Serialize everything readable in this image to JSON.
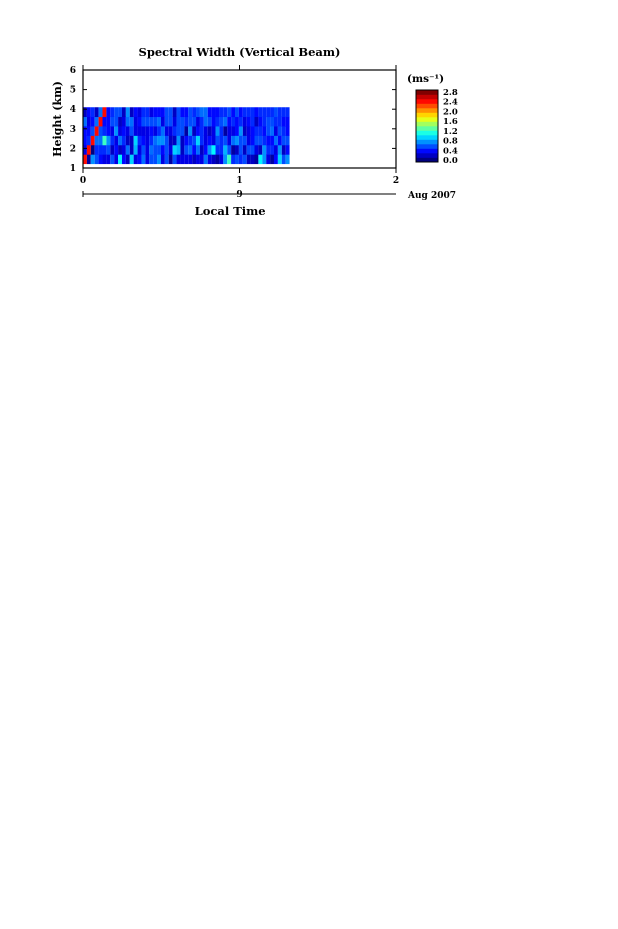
{
  "figure": {
    "x_label": "Local Time",
    "date_label": "Aug 2007"
  },
  "chart_data": [
    {
      "type": "heatmap",
      "title": "Spectral Width (Vertical Beam)",
      "ylabel": "Height (km)",
      "xlabel": "Local Time",
      "x_ticks": [
        "0",
        "1",
        "2"
      ],
      "date_ticks": [
        "9"
      ],
      "date_label": "Aug 2007",
      "y_ticks": [
        "1",
        "2",
        "3",
        "4",
        "5",
        "6"
      ],
      "xlim": [
        0,
        2
      ],
      "ylim": [
        1,
        6
      ],
      "colorbar": {
        "unit": "(ms⁻¹)",
        "ticks": [
          "0.0",
          "0.4",
          "0.8",
          "1.2",
          "1.6",
          "2.0",
          "2.4",
          "2.8"
        ],
        "range": [
          0,
          3.0
        ]
      },
      "grid": [
        [
          2.6,
          0.1,
          0.8,
          0.6,
          0.4,
          0.3,
          0.3,
          0.6,
          0.3,
          1.1,
          0.4,
          0.2,
          1.0,
          0.3,
          0.4,
          0.7,
          0.3,
          0.6,
          0.6,
          0.8,
          0.3,
          0.6,
          0.1,
          0.6,
          0.3,
          0.3,
          0.3,
          0.3,
          0.2,
          0.3,
          0.3,
          0.7,
          0.3,
          0.2,
          0.1,
          0.3,
          0.8,
          1.3,
          0.5,
          0.6,
          0.5,
          0.6,
          0.2,
          0.2,
          0.1,
          1.1,
          0.8,
          0.3,
          0.1,
          0.4,
          1.0,
          0.6,
          0.8
        ],
        [
          0.3,
          2.6,
          0.0,
          0.5,
          0.5,
          0.5,
          0.6,
          0.2,
          0.4,
          0.2,
          0.3,
          0.7,
          0.2,
          0.9,
          0.3,
          0.6,
          0.3,
          0.7,
          0.6,
          0.6,
          0.4,
          0.6,
          0.3,
          1.0,
          0.9,
          0.2,
          0.6,
          0.7,
          0.4,
          0.7,
          0.2,
          0.4,
          0.8,
          1.1,
          0.5,
          0.5,
          0.9,
          0.6,
          0.1,
          0.2,
          0.6,
          0.2,
          0.6,
          0.6,
          0.3,
          0.2,
          0.8,
          0.5,
          0.5,
          0.3,
          0.8,
          0.2,
          0.4
        ],
        [
          0.4,
          0.5,
          2.6,
          0.7,
          0.7,
          1.3,
          0.8,
          0.5,
          0.3,
          0.7,
          0.5,
          0.2,
          0.2,
          1.0,
          0.5,
          0.4,
          0.3,
          0.5,
          0.7,
          0.8,
          0.8,
          0.6,
          0.2,
          0.2,
          0.8,
          0.2,
          0.4,
          0.5,
          0.6,
          1.0,
          0.5,
          0.3,
          0.4,
          0.3,
          0.6,
          0.5,
          0.6,
          0.3,
          0.7,
          0.8,
          0.6,
          0.6,
          0.3,
          0.4,
          0.6,
          0.6,
          0.5,
          0.4,
          0.4,
          0.7,
          0.4,
          0.6,
          0.6
        ],
        [
          0.4,
          0.4,
          0.6,
          2.6,
          0.6,
          0.5,
          0.4,
          0.3,
          0.8,
          0.3,
          0.4,
          0.3,
          0.6,
          0.3,
          0.3,
          0.3,
          0.3,
          0.4,
          0.3,
          0.5,
          0.7,
          0.3,
          0.3,
          0.5,
          0.6,
          0.6,
          0.1,
          0.8,
          0.2,
          0.4,
          0.5,
          0.3,
          0.2,
          0.3,
          0.8,
          0.5,
          0.1,
          0.3,
          0.3,
          0.4,
          0.8,
          0.2,
          0.3,
          0.4,
          0.5,
          0.5,
          0.4,
          0.6,
          0.7,
          0.3,
          0.6,
          0.5,
          0.4
        ],
        [
          0.7,
          0.3,
          0.4,
          0.7,
          2.6,
          0.4,
          0.4,
          0.6,
          0.6,
          0.2,
          0.3,
          0.7,
          0.7,
          0.3,
          0.4,
          0.6,
          0.6,
          0.6,
          0.6,
          0.7,
          0.3,
          0.6,
          0.6,
          0.3,
          0.6,
          0.6,
          0.5,
          0.6,
          0.6,
          0.3,
          0.5,
          0.7,
          0.6,
          0.4,
          0.5,
          0.6,
          0.7,
          0.4,
          0.5,
          0.4,
          0.5,
          0.3,
          0.4,
          0.5,
          0.2,
          0.4,
          0.5,
          0.6,
          0.6,
          0.5,
          0.5,
          0.4,
          0.4
        ],
        [
          0.2,
          0.4,
          0.5,
          0.2,
          0.7,
          2.6,
          0.4,
          0.5,
          0.6,
          0.6,
          0.2,
          0.8,
          0.2,
          0.4,
          0.3,
          0.5,
          0.5,
          0.3,
          0.4,
          0.4,
          0.4,
          0.6,
          0.6,
          0.2,
          0.6,
          0.4,
          0.4,
          0.6,
          0.5,
          0.6,
          0.7,
          0.7,
          0.4,
          0.4,
          0.4,
          0.5,
          0.5,
          0.6,
          0.4,
          0.6,
          0.4,
          0.5,
          0.5,
          0.5,
          0.4,
          0.5,
          0.5,
          0.5,
          0.5,
          0.6,
          0.5,
          0.5,
          0.5
        ]
      ]
    }
  ]
}
